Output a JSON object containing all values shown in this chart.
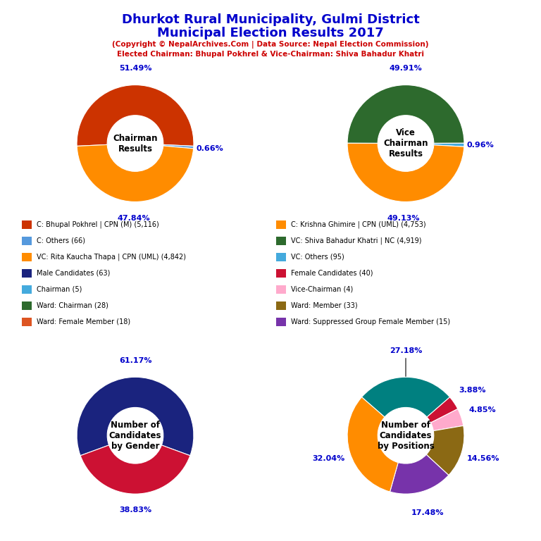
{
  "title_line1": "Dhurkot Rural Municipality, Gulmi District",
  "title_line2": "Municipal Election Results 2017",
  "subtitle1": "(Copyright © NepalArchives.Com | Data Source: Nepal Election Commission)",
  "subtitle2": "Elected Chairman: Bhupal Pokhrel & Vice-Chairman: Shiva Bahadur Khatri",
  "title_color": "#0000cc",
  "subtitle_color": "#cc0000",
  "chairman_slices": [
    51.49,
    0.66,
    47.84
  ],
  "chairman_colors": [
    "#cc3300",
    "#5599dd",
    "#ff8c00"
  ],
  "chairman_labels": [
    "51.49%",
    "0.66%",
    "47.84%"
  ],
  "vice_slices": [
    49.91,
    0.96,
    49.13
  ],
  "vice_colors": [
    "#2d6a2d",
    "#44aadd",
    "#ff8c00"
  ],
  "vice_labels": [
    "49.91%",
    "0.96%",
    "49.13%"
  ],
  "gender_slices": [
    61.17,
    38.83
  ],
  "gender_colors": [
    "#1a237e",
    "#cc1133"
  ],
  "gender_labels": [
    "61.17%",
    "38.83%"
  ],
  "positions_slices": [
    27.18,
    3.88,
    4.85,
    14.56,
    17.48,
    32.04
  ],
  "positions_colors": [
    "#008080",
    "#cc1133",
    "#ffaacc",
    "#8B6914",
    "#7733aa",
    "#ff8c00"
  ],
  "positions_labels": [
    "27.18%",
    "3.88%",
    "4.85%",
    "14.56%",
    "17.48%",
    "32.04%"
  ],
  "legend_left": [
    {
      "color": "#cc3300",
      "text": "C: Bhupal Pokhrel | CPN (M) (5,116)"
    },
    {
      "color": "#5599dd",
      "text": "C: Others (66)"
    },
    {
      "color": "#ff8c00",
      "text": "VC: Rita Kaucha Thapa | CPN (UML) (4,842)"
    },
    {
      "color": "#1a237e",
      "text": "Male Candidates (63)"
    },
    {
      "color": "#44aadd",
      "text": "Chairman (5)"
    },
    {
      "color": "#2d6a2d",
      "text": "Ward: Chairman (28)"
    },
    {
      "color": "#dd5522",
      "text": "Ward: Female Member (18)"
    }
  ],
  "legend_right": [
    {
      "color": "#ff8c00",
      "text": "C: Krishna Ghimire | CPN (UML) (4,753)"
    },
    {
      "color": "#2d6a2d",
      "text": "VC: Shiva Bahadur Khatri | NC (4,919)"
    },
    {
      "color": "#44aadd",
      "text": "VC: Others (95)"
    },
    {
      "color": "#cc1133",
      "text": "Female Candidates (40)"
    },
    {
      "color": "#ffaacc",
      "text": "Vice-Chairman (4)"
    },
    {
      "color": "#8B6914",
      "text": "Ward: Member (33)"
    },
    {
      "color": "#7733aa",
      "text": "Ward: Suppressed Group Female Member (15)"
    }
  ],
  "pct_color": "#0000cc",
  "center_text_color": "#000000"
}
